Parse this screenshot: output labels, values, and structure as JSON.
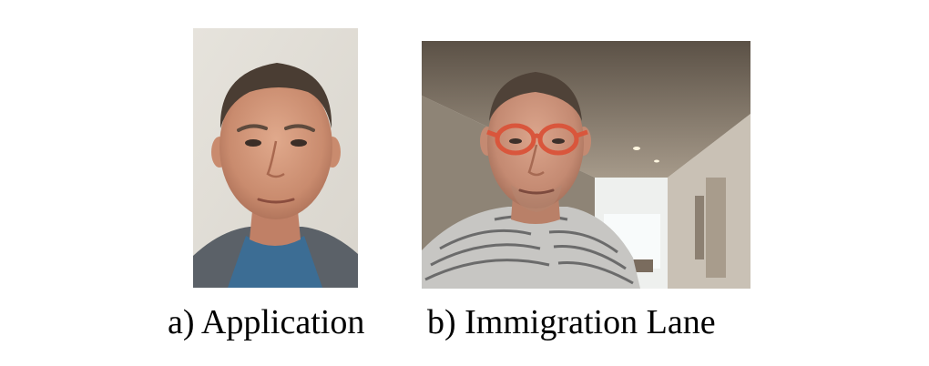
{
  "figure": {
    "panels": [
      {
        "id": "a",
        "caption": "a) Application"
      },
      {
        "id": "b",
        "caption": "b) Immigration Lane"
      }
    ]
  }
}
